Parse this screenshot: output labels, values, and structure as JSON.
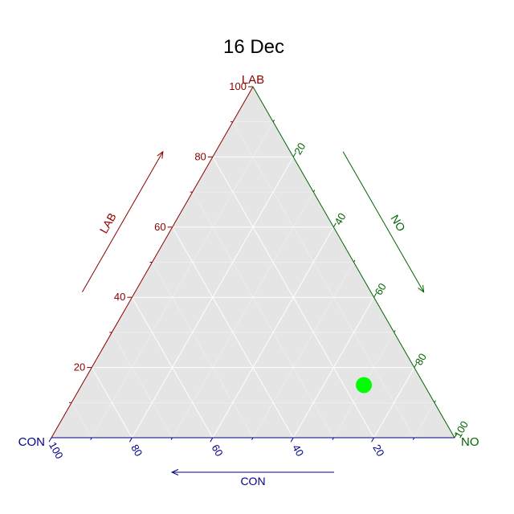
{
  "chart_data": {
    "type": "scatter",
    "subtype": "ternary",
    "title": "16 Dec",
    "axes": {
      "top": {
        "name": "LAB",
        "title": "LAB",
        "color": "#8B0000"
      },
      "left": {
        "name": "CON",
        "title": "CON",
        "color": "#00008B"
      },
      "right": {
        "name": "NO",
        "title": "NO",
        "color": "#006400"
      }
    },
    "ticks": [
      20,
      40,
      60,
      80,
      100
    ],
    "range": [
      0,
      100
    ],
    "grid": true,
    "grid_color": "#ffffff",
    "panel_color": "#E5E5E5",
    "points": [
      {
        "LAB": 15,
        "CON": 15,
        "NO": 70,
        "color": "#00FF00"
      }
    ]
  }
}
